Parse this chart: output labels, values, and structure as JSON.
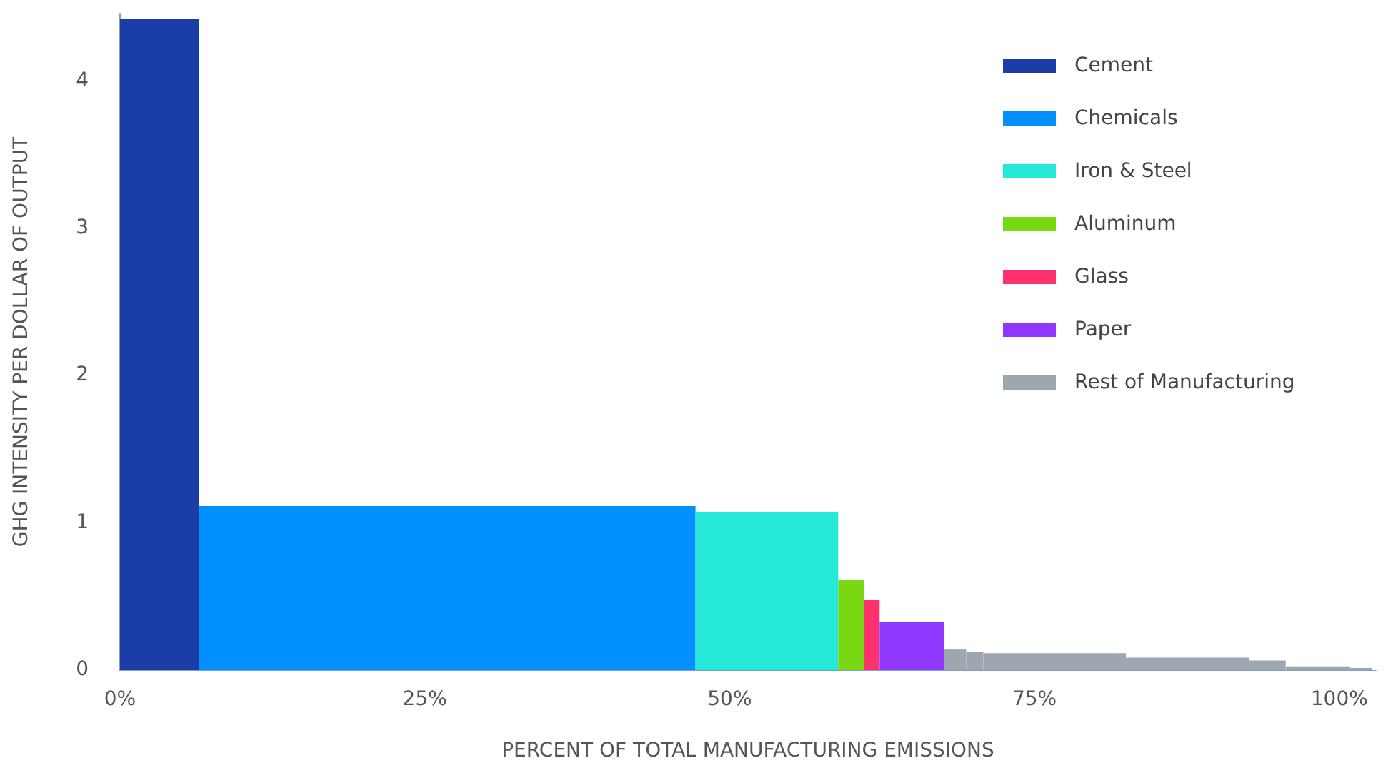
{
  "chart_data": {
    "type": "histogram",
    "xlabel": "PERCENT OF TOTAL MANUFACTURING EMISSIONS",
    "ylabel": "GHG INTENSITY PER DOLLAR OF OUTPUT",
    "xlim": [
      0,
      103
    ],
    "xticks": [
      {
        "value": 0,
        "label": "0%"
      },
      {
        "value": 25,
        "label": "25%"
      },
      {
        "value": 50,
        "label": "50%"
      },
      {
        "value": 75,
        "label": "75%"
      },
      {
        "value": 100,
        "label": "100%"
      }
    ],
    "ylim": [
      0,
      4.45
    ],
    "yticks": [
      0,
      1,
      2,
      3,
      4
    ],
    "grid": false,
    "legend": "top right",
    "bins": [
      0,
      6.5,
      47.2,
      58.9,
      61.0,
      62.3,
      67.6,
      69.4,
      70.8,
      82.5,
      92.6,
      95.6,
      100.9,
      102.7
    ],
    "series": [
      {
        "name": "Cement",
        "color": "#1a3ea6",
        "values": [
          4.42,
          null,
          null,
          null,
          null,
          null,
          null,
          null,
          null,
          null,
          null,
          null,
          null
        ]
      },
      {
        "name": "Chemicals",
        "color": "#0390ff",
        "values": [
          null,
          1.11,
          null,
          null,
          null,
          null,
          null,
          null,
          null,
          null,
          null,
          null,
          null
        ]
      },
      {
        "name": "Iron & Steel",
        "color": "#26e8d8",
        "values": [
          null,
          null,
          1.07,
          null,
          null,
          null,
          null,
          null,
          null,
          null,
          null,
          null,
          null
        ]
      },
      {
        "name": "Aluminum",
        "color": "#78d814",
        "values": [
          null,
          null,
          null,
          0.61,
          null,
          null,
          null,
          null,
          null,
          null,
          null,
          null,
          null
        ]
      },
      {
        "name": "Glass",
        "color": "#ff3270",
        "values": [
          null,
          null,
          null,
          null,
          0.47,
          null,
          null,
          null,
          null,
          null,
          null,
          null,
          null
        ]
      },
      {
        "name": "Paper",
        "color": "#8f38ff",
        "values": [
          null,
          null,
          null,
          null,
          null,
          0.32,
          null,
          null,
          null,
          null,
          null,
          null,
          null
        ]
      },
      {
        "name": "Rest of Manufacturing",
        "color": "#9ea7b0",
        "values": [
          null,
          null,
          null,
          null,
          null,
          null,
          0.14,
          0.12,
          0.11,
          0.08,
          0.06,
          0.02,
          0.01
        ]
      }
    ]
  }
}
